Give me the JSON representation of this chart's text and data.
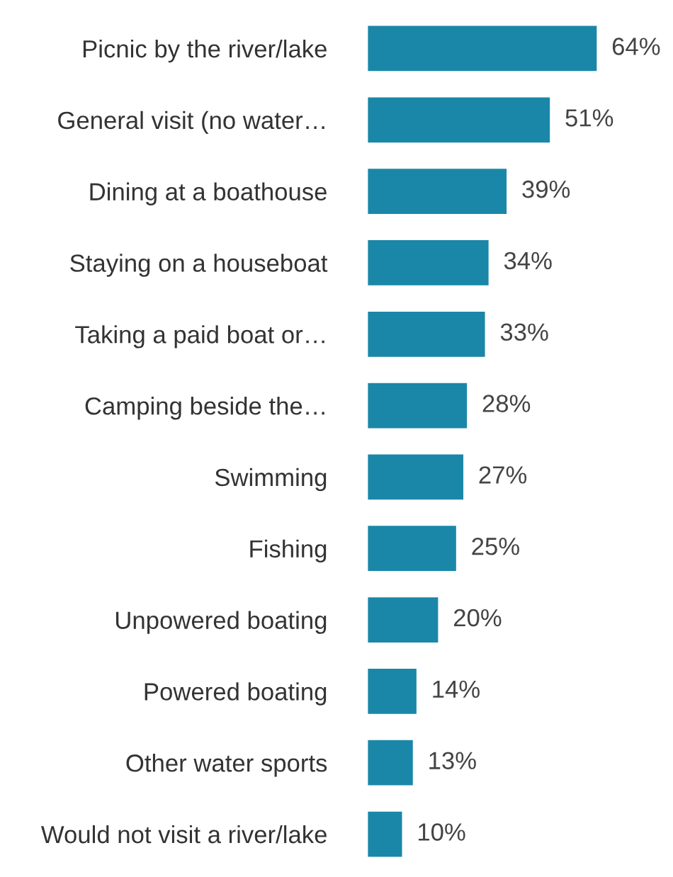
{
  "chart_data": {
    "type": "bar",
    "orientation": "horizontal",
    "categories": [
      "Picnic by the river/lake",
      "General visit (no water…",
      "Dining at a boathouse",
      "Staying on a houseboat",
      "Taking a paid boat or…",
      "Camping beside the…",
      "Swimming",
      "Fishing",
      "Unpowered boating",
      "Powered boating",
      "Other water sports",
      "Would not visit a river/lake"
    ],
    "values": [
      64,
      51,
      39,
      34,
      33,
      28,
      27,
      25,
      20,
      14,
      13,
      10
    ],
    "value_labels": [
      "64%",
      "51%",
      "39%",
      "34%",
      "33%",
      "28%",
      "27%",
      "25%",
      "20%",
      "14%",
      "13%",
      "10%"
    ],
    "color": "#1a87a8",
    "grid": false,
    "legend": false
  }
}
